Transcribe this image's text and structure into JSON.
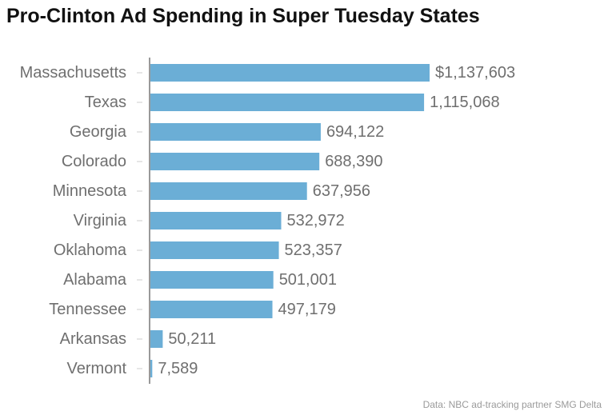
{
  "chart_data": {
    "type": "bar",
    "orientation": "horizontal",
    "title": "Pro-Clinton Ad Spending in Super Tuesday States",
    "categories": [
      "Massachusetts",
      "Texas",
      "Georgia",
      "Colorado",
      "Minnesota",
      "Virginia",
      "Oklahoma",
      "Alabama",
      "Tennessee",
      "Arkansas",
      "Vermont"
    ],
    "values": [
      1137603,
      1115068,
      694122,
      688390,
      637956,
      532972,
      523357,
      501001,
      497179,
      50211,
      7589
    ],
    "value_labels": [
      "$1,137,603",
      "1,115,068",
      "694,122",
      "688,390",
      "637,956",
      "532,972",
      "523,357",
      "501,001",
      "497,179",
      "50,211",
      "7,589"
    ],
    "xlabel": "",
    "ylabel": "",
    "grid": false,
    "legend": "none",
    "bar_color": "#6baed6",
    "source": "Data: NBC ad-tracking partner SMG Delta"
  }
}
